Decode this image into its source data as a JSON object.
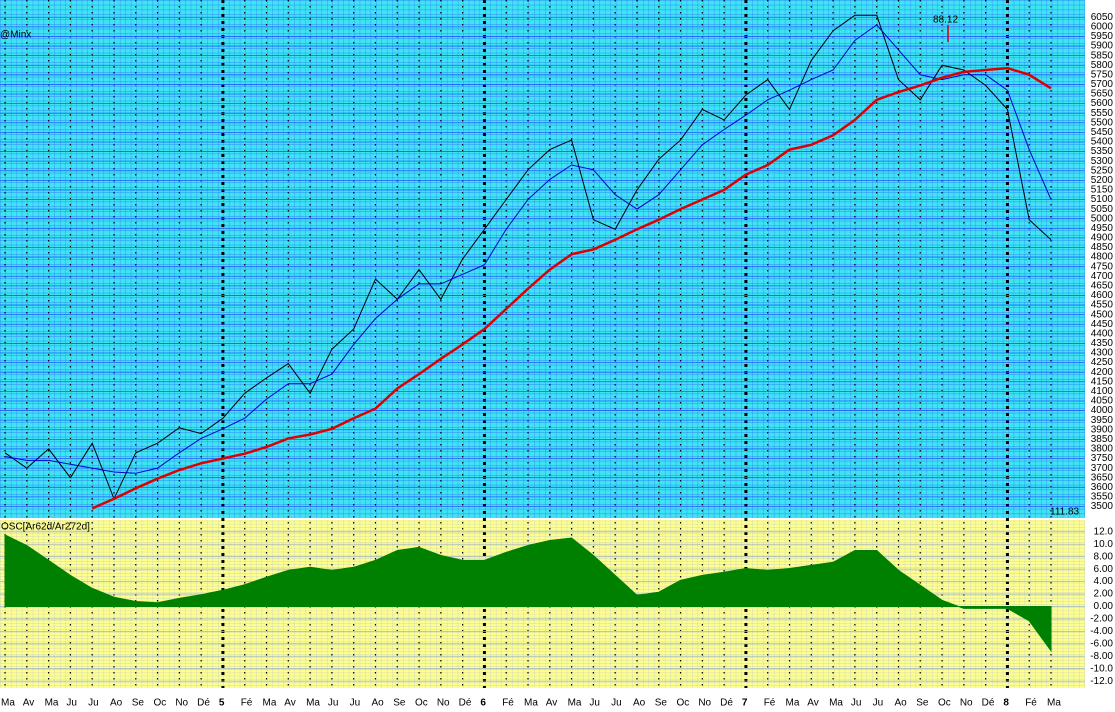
{
  "chart_data": [
    {
      "type": "line",
      "title": "@Minx",
      "annotations": [
        {
          "text": "88.12"
        },
        {
          "text": "111.83"
        }
      ],
      "categories": [
        "Ma",
        "Av",
        "Ma",
        "Ju",
        "Ju",
        "Ao",
        "Se",
        "Oc",
        "No",
        "Dé",
        "5",
        "Fé",
        "Ma",
        "Av",
        "Ma",
        "Ju",
        "Ju",
        "Ao",
        "Se",
        "Oc",
        "No",
        "Dé",
        "6",
        "Fé",
        "Ma",
        "Av",
        "Ma",
        "Ju",
        "Ju",
        "Ao",
        "Se",
        "Oc",
        "No",
        "Dé",
        "7",
        "Fé",
        "Ma",
        "Av",
        "Ma",
        "Ju",
        "Ju",
        "Ao",
        "Se",
        "Oc",
        "No",
        "Dé",
        "8",
        "Fé",
        "Ma"
      ],
      "series": [
        {
          "color": "#000000",
          "values": [
            3780,
            3700,
            3800,
            3650,
            3830,
            3540,
            3780,
            3830,
            3910,
            3880,
            3960,
            4090,
            4170,
            4245,
            4090,
            4320,
            4425,
            4685,
            4580,
            4735,
            4580,
            4790,
            4945,
            5100,
            5255,
            5360,
            5410,
            4995,
            4945,
            5150,
            5310,
            5410,
            5570,
            5515,
            5645,
            5725,
            5570,
            5825,
            5980,
            6060,
            6060,
            5725,
            5620,
            5800,
            5775,
            5695,
            5570,
            4995,
            4890
          ]
        },
        {
          "color": "#0000cc",
          "values": [
            3760,
            3740,
            3740,
            3720,
            3700,
            3680,
            3673,
            3700,
            3780,
            3855,
            3905,
            3960,
            4060,
            4140,
            4140,
            4190,
            4345,
            4480,
            4580,
            4660,
            4660,
            4710,
            4760,
            4945,
            5100,
            5205,
            5280,
            5255,
            5125,
            5050,
            5125,
            5255,
            5385,
            5465,
            5540,
            5620,
            5670,
            5725,
            5775,
            5930,
            6010,
            5880,
            5750,
            5725,
            5750,
            5750,
            5670,
            5360,
            5100
          ]
        },
        {
          "color": "#dd0000",
          "values": [
            null,
            null,
            null,
            null,
            3490,
            3540,
            3595,
            3645,
            3690,
            3725,
            3750,
            3775,
            3810,
            3855,
            3875,
            3905,
            3960,
            4010,
            4115,
            4190,
            4270,
            4345,
            4425,
            4530,
            4635,
            4735,
            4815,
            4840,
            4890,
            4945,
            4995,
            5050,
            5100,
            5150,
            5230,
            5280,
            5360,
            5385,
            5435,
            5515,
            5620,
            5660,
            5695,
            5735,
            5765,
            5775,
            5785,
            5750,
            5680
          ]
        }
      ],
      "ylim": [
        3440,
        6140
      ],
      "yticks": [
        3500,
        3550,
        3600,
        3650,
        3700,
        3750,
        3800,
        3850,
        3900,
        3950,
        4000,
        4050,
        4100,
        4150,
        4200,
        4250,
        4300,
        4350,
        4400,
        4450,
        4500,
        4550,
        4600,
        4650,
        4700,
        4750,
        4800,
        4850,
        4900,
        4950,
        5000,
        5050,
        5100,
        5150,
        5200,
        5250,
        5300,
        5350,
        5400,
        5450,
        5500,
        5550,
        5600,
        5650,
        5700,
        5750,
        5800,
        5850,
        5900,
        5950,
        6000,
        6050
      ],
      "grid": true
    },
    {
      "type": "area",
      "title": "OSC[Ar62d/Ar272d]",
      "color": "#008000",
      "values": [
        11.5,
        9.8,
        7.4,
        5.0,
        2.9,
        1.5,
        0.8,
        0.6,
        1.3,
        1.9,
        2.6,
        3.5,
        4.7,
        5.8,
        6.3,
        5.8,
        6.3,
        7.4,
        9.0,
        9.5,
        8.2,
        7.4,
        7.4,
        8.7,
        9.8,
        10.6,
        11.0,
        8.2,
        5.0,
        1.8,
        2.3,
        4.2,
        5.0,
        5.5,
        6.1,
        5.8,
        6.1,
        6.6,
        7.1,
        9.0,
        9.0,
        5.8,
        3.4,
        1.0,
        -0.3,
        -0.3,
        -0.3,
        -2.3,
        -7.1
      ],
      "ylim": [
        -13.1,
        13.9
      ],
      "yticks": [
        {
          "value": 12,
          "label": "12.0"
        },
        {
          "value": 10,
          "label": "10.0"
        },
        {
          "value": 8,
          "label": "8.00"
        },
        {
          "value": 6,
          "label": "6.00"
        },
        {
          "value": 4,
          "label": "4.00"
        },
        {
          "value": 2,
          "label": "2.00"
        },
        {
          "value": 0,
          "label": "0.00"
        },
        {
          "value": -2,
          "label": "-2.00"
        },
        {
          "value": -4,
          "label": "-4.00"
        },
        {
          "value": -6,
          "label": "-6.00"
        },
        {
          "value": -8,
          "label": "-8.00"
        },
        {
          "value": -10,
          "label": "-10.0"
        },
        {
          "value": -12,
          "label": "-12.0"
        }
      ],
      "grid": true
    }
  ]
}
